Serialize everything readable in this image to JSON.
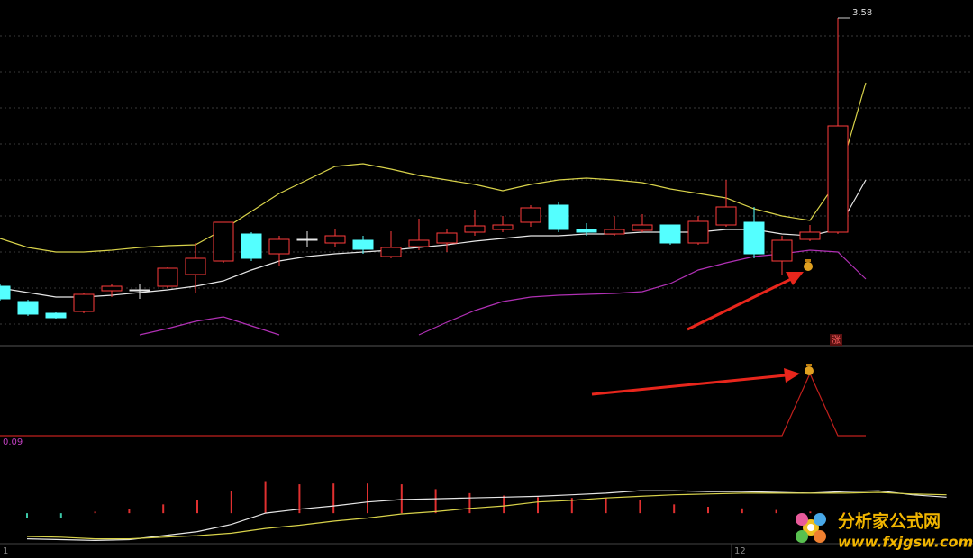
{
  "chart_data": [
    {
      "type": "candlestick",
      "up_color": "#ff3b3b",
      "down_color": "#54ffff",
      "doji_color": "#e8e8e8",
      "ylim": [
        3.22,
        3.6
      ],
      "grid": true,
      "high_label": "3.58",
      "annotation": "涨",
      "candles": [
        {
          "open": 3.282,
          "close": 3.268,
          "high": 3.285,
          "low": 3.266
        },
        {
          "open": 3.265,
          "close": 3.251,
          "high": 3.267,
          "low": 3.249
        },
        {
          "open": 3.252,
          "close": 3.247,
          "high": 3.253,
          "low": 3.246
        },
        {
          "open": 3.254,
          "close": 3.273,
          "high": 3.275,
          "low": 3.252
        },
        {
          "open": 3.277,
          "close": 3.282,
          "high": 3.285,
          "low": 3.27
        },
        {
          "open": 3.278,
          "close": 3.278,
          "high": 3.285,
          "low": 3.268
        },
        {
          "open": 3.282,
          "close": 3.302,
          "high": 3.303,
          "low": 3.28
        },
        {
          "open": 3.295,
          "close": 3.313,
          "high": 3.33,
          "low": 3.275
        },
        {
          "open": 3.31,
          "close": 3.353,
          "high": 3.353,
          "low": 3.308
        },
        {
          "open": 3.34,
          "close": 3.313,
          "high": 3.342,
          "low": 3.31
        },
        {
          "open": 3.318,
          "close": 3.334,
          "high": 3.338,
          "low": 3.305
        },
        {
          "open": 3.334,
          "close": 3.334,
          "high": 3.343,
          "low": 3.325
        },
        {
          "open": 3.33,
          "close": 3.338,
          "high": 3.345,
          "low": 3.325
        },
        {
          "open": 3.333,
          "close": 3.323,
          "high": 3.338,
          "low": 3.318
        },
        {
          "open": 3.315,
          "close": 3.325,
          "high": 3.343,
          "low": 3.313
        },
        {
          "open": 3.326,
          "close": 3.333,
          "high": 3.357,
          "low": 3.322
        },
        {
          "open": 3.33,
          "close": 3.341,
          "high": 3.345,
          "low": 3.32
        },
        {
          "open": 3.342,
          "close": 3.349,
          "high": 3.367,
          "low": 3.338
        },
        {
          "open": 3.345,
          "close": 3.35,
          "high": 3.36,
          "low": 3.342
        },
        {
          "open": 3.353,
          "close": 3.369,
          "high": 3.372,
          "low": 3.348
        },
        {
          "open": 3.372,
          "close": 3.345,
          "high": 3.376,
          "low": 3.342
        },
        {
          "open": 3.345,
          "close": 3.342,
          "high": 3.352,
          "low": 3.338
        },
        {
          "open": 3.34,
          "close": 3.345,
          "high": 3.36,
          "low": 3.338
        },
        {
          "open": 3.344,
          "close": 3.35,
          "high": 3.362,
          "low": 3.342
        },
        {
          "open": 3.35,
          "close": 3.33,
          "high": 3.35,
          "low": 3.328
        },
        {
          "open": 3.33,
          "close": 3.354,
          "high": 3.36,
          "low": 3.328
        },
        {
          "open": 3.35,
          "close": 3.37,
          "high": 3.4,
          "low": 3.348
        },
        {
          "open": 3.353,
          "close": 3.318,
          "high": 3.37,
          "low": 3.313
        },
        {
          "open": 3.31,
          "close": 3.333,
          "high": 3.338,
          "low": 3.295
        },
        {
          "open": 3.334,
          "close": 3.342,
          "high": 3.35,
          "low": 3.332
        },
        {
          "open": 3.342,
          "close": 3.46,
          "high": 3.58,
          "low": 3.34
        },
        null
      ],
      "series": [
        {
          "color": "#d8d24a",
          "values": [
            3.335,
            3.325,
            3.32,
            3.32,
            3.322,
            3.325,
            3.327,
            3.328,
            3.345,
            3.365,
            3.385,
            3.4,
            3.415,
            3.418,
            3.412,
            3.405,
            3.4,
            3.395,
            3.388,
            3.395,
            3.4,
            3.402,
            3.4,
            3.397,
            3.39,
            3.385,
            3.38,
            3.368,
            3.36,
            3.355,
            3.4,
            3.508
          ]
        },
        {
          "color": "#e6e6e6",
          "values": [
            3.28,
            3.275,
            3.27,
            3.27,
            3.272,
            3.275,
            3.278,
            3.282,
            3.288,
            3.3,
            3.31,
            3.315,
            3.318,
            3.32,
            3.322,
            3.325,
            3.328,
            3.332,
            3.335,
            3.338,
            3.338,
            3.34,
            3.34,
            3.342,
            3.342,
            3.342,
            3.345,
            3.345,
            3.34,
            3.338,
            3.345,
            3.4
          ]
        },
        {
          "color": "#b030b4",
          "values": [
            null,
            null,
            null,
            null,
            null,
            3.228,
            3.235,
            3.243,
            3.248,
            3.238,
            3.228,
            null,
            null,
            null,
            null,
            3.228,
            3.242,
            3.255,
            3.265,
            3.27,
            3.272,
            3.273,
            3.274,
            3.276,
            3.285,
            3.3,
            3.308,
            3.315,
            3.318,
            3.322,
            3.32,
            3.29
          ]
        }
      ]
    },
    {
      "type": "line",
      "color": "#c0201c",
      "ylim": [
        0,
        1
      ],
      "values": [
        0,
        0,
        0,
        0,
        0,
        0,
        0,
        0,
        0,
        0,
        0,
        0,
        0,
        0,
        0,
        0,
        0,
        0,
        0,
        0,
        0,
        0,
        0,
        0,
        0,
        0,
        0,
        0,
        0,
        1,
        0,
        0
      ]
    },
    {
      "type": "macd",
      "label": "0.09",
      "ylim": [
        -0.056,
        0.09
      ],
      "up_color": "#e03030",
      "down_color": "#3cc8a8",
      "bars": [
        -0.006,
        -0.006,
        0.002,
        0.005,
        0.011,
        0.017,
        0.028,
        0.04,
        0.036,
        0.037,
        0.037,
        0.036,
        0.03,
        0.025,
        0.022,
        0.02,
        0.019,
        0.019,
        0.017,
        0.011,
        0.008,
        0.006,
        0.004,
        0.002,
        0.001,
        null,
        null,
        null
      ],
      "series": [
        {
          "color": "#e6e6e6",
          "values": [
            -0.032,
            -0.033,
            -0.034,
            -0.033,
            -0.028,
            -0.023,
            -0.014,
            0,
            0.005,
            0.009,
            0.014,
            0.017,
            0.018,
            0.019,
            0.02,
            0.021,
            0.023,
            0.025,
            0.028,
            0.028,
            0.027,
            0.027,
            0.026,
            0.025,
            0.027,
            0.028,
            0.023,
            0.02
          ]
        },
        {
          "color": "#d8d24a",
          "values": [
            -0.029,
            -0.03,
            -0.032,
            -0.032,
            -0.03,
            -0.028,
            -0.025,
            -0.019,
            -0.015,
            -0.01,
            -0.006,
            -0.001,
            0.002,
            0.006,
            0.009,
            0.014,
            0.016,
            0.019,
            0.021,
            0.023,
            0.024,
            0.025,
            0.025,
            0.025,
            0.025,
            0.026,
            0.024,
            0.023
          ]
        }
      ]
    }
  ],
  "date_labels": [
    "1",
    "12"
  ],
  "watermark": {
    "name": "分析家公式网",
    "url": "www.fxjgsw.com"
  }
}
